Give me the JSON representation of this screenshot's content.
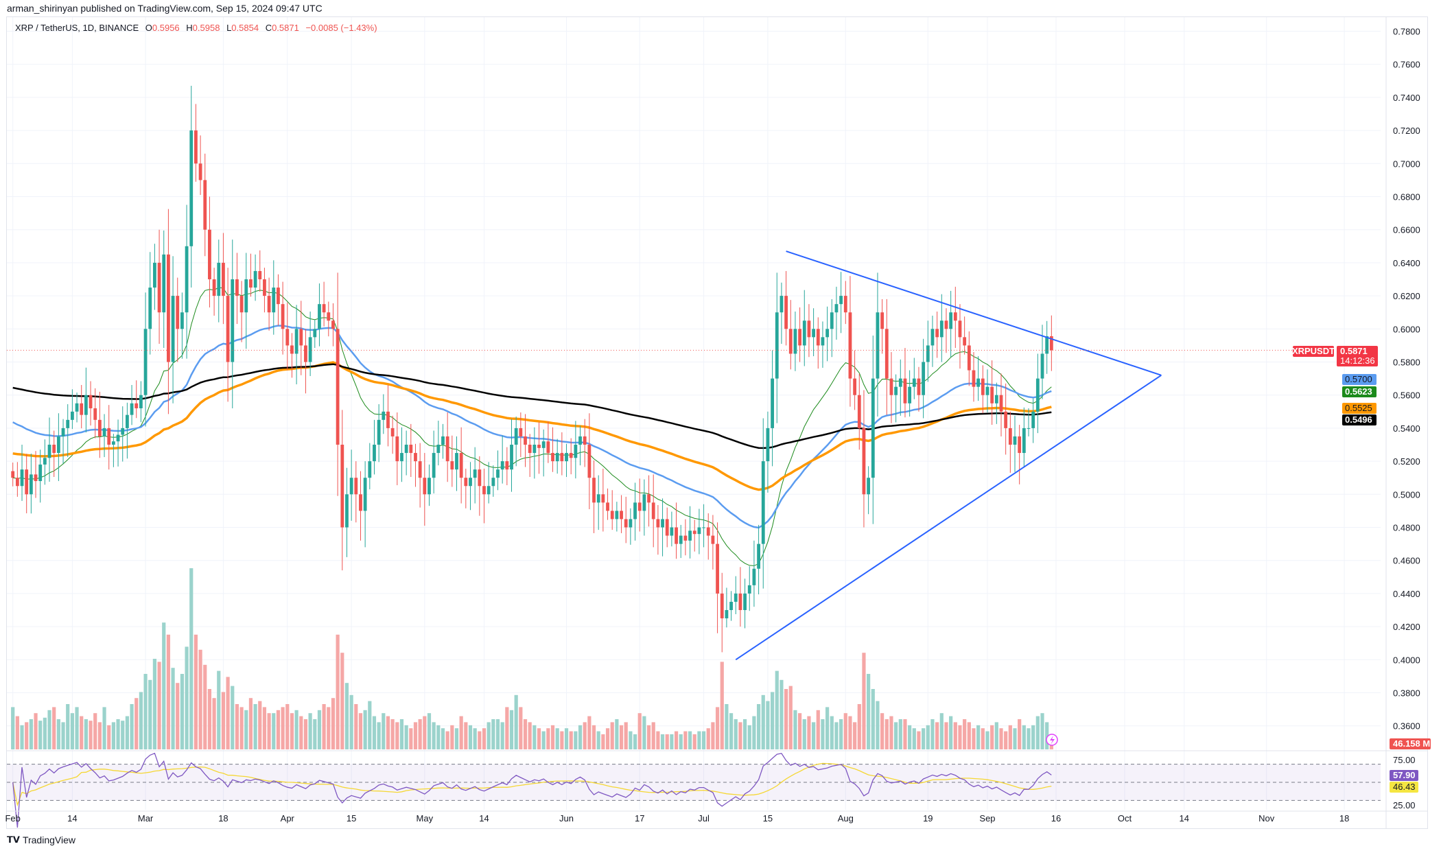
{
  "publisher_line": "arman_shirinyan published on TradingView.com, Sep 15, 2024 09:47 UTC",
  "symbol": {
    "name": "XRP / TetherUS, 1D, BINANCE",
    "o_label": "O",
    "o": "0.5956",
    "h_label": "H",
    "h": "0.5958",
    "l_label": "L",
    "l": "0.5854",
    "c_label": "C",
    "c": "0.5871",
    "change": "−0.0085 (−1.43%)"
  },
  "branding": "TradingView",
  "colors": {
    "up": "#26a69a",
    "down": "#ef5350",
    "ma20": "#1b8a1b",
    "ma50": "#5b9cf0",
    "ma100": "#ff9800",
    "ma200": "#000000",
    "rsi": "#7e57c2",
    "rsi_ma": "#f5d733",
    "trendline": "#2962ff"
  },
  "price_badges": {
    "symbol": "XRPUSDT",
    "last": "0.5871",
    "countdown": "14:12:36",
    "ma50": "0.5700",
    "ma20": "0.5623",
    "ma100": "0.5525",
    "ma200": "0.5496",
    "volume": "46.158 M",
    "rsi": "57.90",
    "rsi_ma": "46.43"
  },
  "chart_data": {
    "type": "candlestick",
    "start_date": "2024-02-01",
    "close": [
      0.51,
      0.505,
      0.515,
      0.5,
      0.512,
      0.508,
      0.518,
      0.522,
      0.53,
      0.525,
      0.535,
      0.54,
      0.545,
      0.55,
      0.555,
      0.548,
      0.56,
      0.552,
      0.545,
      0.535,
      0.54,
      0.53,
      0.532,
      0.536,
      0.54,
      0.548,
      0.555,
      0.552,
      0.56,
      0.6,
      0.625,
      0.64,
      0.61,
      0.645,
      0.58,
      0.62,
      0.6,
      0.61,
      0.65,
      0.72,
      0.7,
      0.69,
      0.66,
      0.63,
      0.62,
      0.64,
      0.62,
      0.58,
      0.63,
      0.62,
      0.61,
      0.63,
      0.625,
      0.635,
      0.63,
      0.62,
      0.61,
      0.625,
      0.615,
      0.6,
      0.59,
      0.585,
      0.6,
      0.59,
      0.58,
      0.595,
      0.6,
      0.615,
      0.61,
      0.605,
      0.6,
      0.53,
      0.48,
      0.5,
      0.51,
      0.5,
      0.49,
      0.51,
      0.52,
      0.53,
      0.545,
      0.55,
      0.54,
      0.535,
      0.52,
      0.525,
      0.53,
      0.525,
      0.52,
      0.51,
      0.5,
      0.51,
      0.525,
      0.53,
      0.535,
      0.52,
      0.515,
      0.525,
      0.51,
      0.505,
      0.51,
      0.515,
      0.505,
      0.5,
      0.505,
      0.51,
      0.515,
      0.52,
      0.515,
      0.53,
      0.54,
      0.535,
      0.53,
      0.525,
      0.53,
      0.528,
      0.532,
      0.525,
      0.52,
      0.525,
      0.52,
      0.525,
      0.522,
      0.53,
      0.535,
      0.53,
      0.51,
      0.495,
      0.5,
      0.495,
      0.49,
      0.485,
      0.49,
      0.485,
      0.48,
      0.485,
      0.495,
      0.49,
      0.5,
      0.495,
      0.485,
      0.48,
      0.485,
      0.475,
      0.48,
      0.47,
      0.475,
      0.472,
      0.478,
      0.476,
      0.48,
      0.48,
      0.475,
      0.47,
      0.44,
      0.425,
      0.43,
      0.435,
      0.44,
      0.43,
      0.44,
      0.445,
      0.455,
      0.47,
      0.52,
      0.54,
      0.57,
      0.61,
      0.62,
      0.6,
      0.585,
      0.6,
      0.59,
      0.605,
      0.595,
      0.6,
      0.59,
      0.595,
      0.6,
      0.61,
      0.615,
      0.62,
      0.61,
      0.57,
      0.56,
      0.54,
      0.5,
      0.51,
      0.57,
      0.61,
      0.6,
      0.57,
      0.56,
      0.565,
      0.57,
      0.555,
      0.565,
      0.57,
      0.56,
      0.58,
      0.59,
      0.6,
      0.595,
      0.605,
      0.6,
      0.61,
      0.605,
      0.595,
      0.59,
      0.575,
      0.565,
      0.57,
      0.56,
      0.565,
      0.555,
      0.56,
      0.55,
      0.54,
      0.53,
      0.535,
      0.525,
      0.54,
      0.54,
      0.55,
      0.57,
      0.585,
      0.5956,
      0.5871
    ],
    "volume_m": [
      140,
      110,
      80,
      90,
      100,
      120,
      95,
      105,
      130,
      140,
      100,
      90,
      150,
      120,
      140,
      110,
      100,
      95,
      120,
      90,
      140,
      80,
      90,
      100,
      95,
      110,
      150,
      170,
      190,
      250,
      230,
      300,
      290,
      420,
      380,
      270,
      220,
      250,
      340,
      600,
      380,
      330,
      280,
      200,
      170,
      260,
      190,
      240,
      210,
      150,
      140,
      130,
      170,
      150,
      160,
      140,
      120,
      120,
      130,
      140,
      150,
      120,
      130,
      110,
      100,
      120,
      100,
      130,
      150,
      140,
      170,
      380,
      320,
      220,
      180,
      150,
      120,
      130,
      160,
      110,
      90,
      120,
      110,
      100,
      90,
      100,
      80,
      70,
      90,
      100,
      110,
      120,
      90,
      80,
      70,
      60,
      80,
      70,
      110,
      90,
      80,
      70,
      60,
      70,
      90,
      100,
      100,
      90,
      140,
      130,
      180,
      140,
      100,
      90,
      80,
      70,
      60,
      70,
      80,
      70,
      60,
      70,
      60,
      60,
      80,
      90,
      110,
      80,
      60,
      50,
      70,
      90,
      100,
      80,
      90,
      60,
      50,
      120,
      110,
      80,
      90,
      60,
      50,
      50,
      50,
      60,
      50,
      60,
      60,
      50,
      60,
      60,
      70,
      90,
      140,
      290,
      150,
      120,
      100,
      90,
      100,
      80,
      110,
      150,
      180,
      160,
      190,
      260,
      230,
      200,
      210,
      130,
      120,
      100,
      110,
      90,
      130,
      100,
      140,
      110,
      90,
      100,
      120,
      110,
      90,
      150,
      320,
      250,
      200,
      160,
      120,
      100,
      110,
      90,
      100,
      100,
      80,
      70,
      60,
      70,
      80,
      100,
      90,
      120,
      90,
      110,
      90,
      80,
      100,
      90,
      70,
      80,
      70,
      60,
      80,
      90,
      70,
      60,
      80,
      70,
      100,
      80,
      70,
      80,
      110,
      120,
      90,
      46.158
    ],
    "moving_averages": [
      "MA 20",
      "MA 50",
      "MA 100",
      "MA 200"
    ],
    "rsi_levels": {
      "upper": "75.00",
      "lower": "25.00"
    },
    "price_ticks": [
      "0.7800",
      "0.7600",
      "0.7400",
      "0.7200",
      "0.7000",
      "0.6800",
      "0.6600",
      "0.6400",
      "0.6200",
      "0.6000",
      "0.5800",
      "0.5600",
      "0.5400",
      "0.5200",
      "0.5000",
      "0.4800",
      "0.4600",
      "0.4400",
      "0.4200",
      "0.4000",
      "0.3800",
      "0.3600"
    ],
    "date_ticks": [
      {
        "label": "Feb",
        "date": "2024-02-01"
      },
      {
        "label": "14",
        "date": "2024-02-14"
      },
      {
        "label": "Mar",
        "date": "2024-03-01"
      },
      {
        "label": "18",
        "date": "2024-03-18"
      },
      {
        "label": "Apr",
        "date": "2024-04-01"
      },
      {
        "label": "15",
        "date": "2024-04-15"
      },
      {
        "label": "May",
        "date": "2024-05-01"
      },
      {
        "label": "14",
        "date": "2024-05-14"
      },
      {
        "label": "Jun",
        "date": "2024-06-01"
      },
      {
        "label": "17",
        "date": "2024-06-17"
      },
      {
        "label": "Jul",
        "date": "2024-07-01"
      },
      {
        "label": "15",
        "date": "2024-07-15"
      },
      {
        "label": "Aug",
        "date": "2024-08-01"
      },
      {
        "label": "19",
        "date": "2024-08-19"
      },
      {
        "label": "Sep",
        "date": "2024-09-01"
      },
      {
        "label": "16",
        "date": "2024-09-16"
      },
      {
        "label": "Oct",
        "date": "2024-10-01"
      },
      {
        "label": "14",
        "date": "2024-10-14"
      },
      {
        "label": "Nov",
        "date": "2024-11-01"
      },
      {
        "label": "18",
        "date": "2024-11-18"
      }
    ],
    "trendlines": [
      {
        "from": {
          "date": "2024-07-19",
          "price": 0.647
        },
        "to": {
          "date": "2024-10-09",
          "price": 0.572
        }
      },
      {
        "from": {
          "date": "2024-07-08",
          "price": 0.4
        },
        "to": {
          "date": "2024-10-09",
          "price": 0.572
        }
      }
    ],
    "ylim": [
      0.35,
      0.79
    ]
  }
}
